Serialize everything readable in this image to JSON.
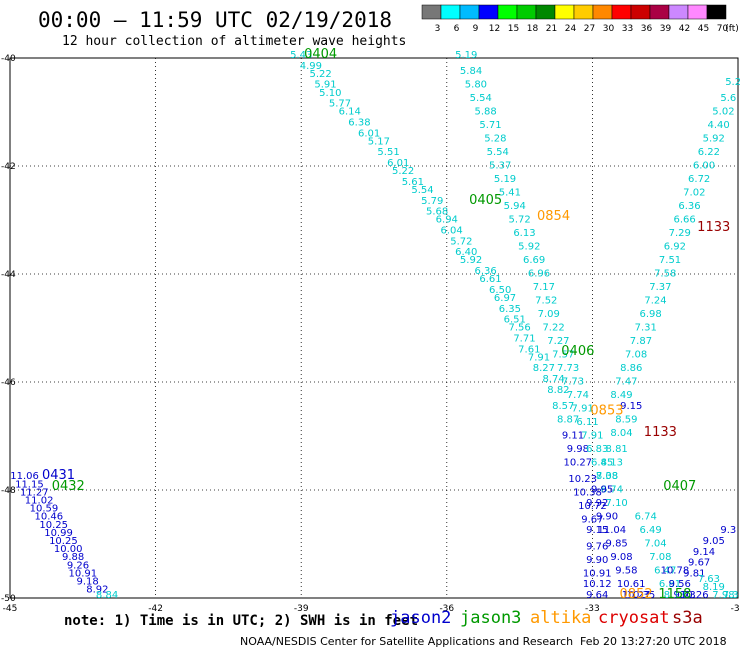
{
  "header": {
    "title": "00:00 – 11:59 UTC 02/19/2018",
    "subtitle": "12 hour collection of altimeter wave heights"
  },
  "footer": {
    "note": "note: 1) Time is in UTC; 2) SWH is in feet",
    "credit": "NOAA/NESDIS Center for Satellite Applications and Research",
    "timestamp": "Feb 20 13:27:20 UTC 2018"
  },
  "legend": {
    "satellites": [
      {
        "name": "jason2",
        "color": "#0000cc"
      },
      {
        "name": "jason3",
        "color": "#009900"
      },
      {
        "name": "altika",
        "color": "#ff9900"
      },
      {
        "name": "cryosat",
        "color": "#dd0000"
      },
      {
        "name": "s3a",
        "color": "#990000"
      }
    ],
    "colorscale": {
      "ticks": [
        "3",
        "6",
        "9",
        "12",
        "15",
        "18",
        "21",
        "24",
        "27",
        "30",
        "33",
        "36",
        "39",
        "42",
        "45",
        "70"
      ],
      "unit": "(ft)",
      "colors": [
        "#777777",
        "#00ffff",
        "#00bbff",
        "#0000ff",
        "#00ff00",
        "#00cc00",
        "#008800",
        "#ffff00",
        "#ffcc00",
        "#ff8800",
        "#ff0000",
        "#cc0000",
        "#aa0044",
        "#cc88ff",
        "#ff88ff",
        "#000000"
      ]
    }
  },
  "chart_data": {
    "type": "scatter",
    "xlabel": "",
    "ylabel": "",
    "x_ticks": [
      "-45",
      "-42",
      "-39",
      "-36",
      "-33",
      "-30"
    ],
    "y_ticks": [
      "-50",
      "-48",
      "-46",
      "-44",
      "-42",
      "-40"
    ],
    "xlim": [
      -45,
      -30
    ],
    "ylim": [
      -50,
      -40
    ],
    "grid": true,
    "time_labels": [
      {
        "text": "0404",
        "lon": -38.6,
        "lat": -40.0,
        "sat": "jason3"
      },
      {
        "text": "0405",
        "lon": -35.2,
        "lat": -42.7,
        "sat": "jason3"
      },
      {
        "text": "0854",
        "lon": -33.8,
        "lat": -43.0,
        "sat": "altika"
      },
      {
        "text": "1133",
        "lon": -30.5,
        "lat": -43.2,
        "sat": "s3a"
      },
      {
        "text": "0406",
        "lon": -33.3,
        "lat": -45.5,
        "sat": "jason3"
      },
      {
        "text": "0853",
        "lon": -32.7,
        "lat": -46.6,
        "sat": "altika"
      },
      {
        "text": "1133",
        "lon": -31.6,
        "lat": -47.0,
        "sat": "s3a"
      },
      {
        "text": "0407",
        "lon": -31.2,
        "lat": -48.0,
        "sat": "jason3"
      },
      {
        "text": "0431",
        "lon": -44.0,
        "lat": -47.8,
        "sat": "jason2"
      },
      {
        "text": "0432",
        "lon": -43.8,
        "lat": -48.0,
        "sat": "jason3"
      },
      {
        "text": "0852",
        "lon": -32.1,
        "lat": -50.0,
        "sat": "altika"
      },
      {
        "text": "1158",
        "lon": -31.3,
        "lat": -50.0,
        "sat": "jason3"
      }
    ],
    "points": [
      {
        "lon": -39.0,
        "lat": -40.0,
        "v": "5.43",
        "c": "#00cccc"
      },
      {
        "lon": -38.8,
        "lat": -40.2,
        "v": "4.99",
        "c": "#00cccc"
      },
      {
        "lon": -38.6,
        "lat": -40.35,
        "v": "5.22",
        "c": "#00cccc"
      },
      {
        "lon": -38.5,
        "lat": -40.55,
        "v": "5.91",
        "c": "#00cccc"
      },
      {
        "lon": -38.4,
        "lat": -40.7,
        "v": "5.10",
        "c": "#00cccc"
      },
      {
        "lon": -38.2,
        "lat": -40.9,
        "v": "5.77",
        "c": "#00cccc"
      },
      {
        "lon": -38.0,
        "lat": -41.05,
        "v": "6.14",
        "c": "#00cccc"
      },
      {
        "lon": -37.8,
        "lat": -41.25,
        "v": "6.38",
        "c": "#00cccc"
      },
      {
        "lon": -37.6,
        "lat": -41.45,
        "v": "6.01",
        "c": "#00cccc"
      },
      {
        "lon": -37.4,
        "lat": -41.6,
        "v": "5.17",
        "c": "#00cccc"
      },
      {
        "lon": -37.2,
        "lat": -41.8,
        "v": "5.51",
        "c": "#00cccc"
      },
      {
        "lon": -37.0,
        "lat": -42.0,
        "v": "6.01",
        "c": "#00cccc"
      },
      {
        "lon": -36.9,
        "lat": -42.15,
        "v": "5.22",
        "c": "#00cccc"
      },
      {
        "lon": -36.7,
        "lat": -42.35,
        "v": "5.61",
        "c": "#00cccc"
      },
      {
        "lon": -36.5,
        "lat": -42.5,
        "v": "5.54",
        "c": "#00cccc"
      },
      {
        "lon": -36.3,
        "lat": -42.7,
        "v": "5.79",
        "c": "#00cccc"
      },
      {
        "lon": -36.2,
        "lat": -42.9,
        "v": "5.68",
        "c": "#00cccc"
      },
      {
        "lon": -36.0,
        "lat": -43.05,
        "v": "6.94",
        "c": "#00cccc"
      },
      {
        "lon": -35.9,
        "lat": -43.25,
        "v": "6.04",
        "c": "#00cccc"
      },
      {
        "lon": -35.7,
        "lat": -43.45,
        "v": "5.72",
        "c": "#00cccc"
      },
      {
        "lon": -35.6,
        "lat": -43.65,
        "v": "6.40",
        "c": "#00cccc"
      },
      {
        "lon": -35.5,
        "lat": -43.8,
        "v": "5.92",
        "c": "#00cccc"
      },
      {
        "lon": -35.2,
        "lat": -44.0,
        "v": "6.36",
        "c": "#00cccc"
      },
      {
        "lon": -35.1,
        "lat": -44.15,
        "v": "6.61",
        "c": "#00cccc"
      },
      {
        "lon": -34.9,
        "lat": -44.35,
        "v": "6.50",
        "c": "#00cccc"
      },
      {
        "lon": -34.8,
        "lat": -44.5,
        "v": "6.97",
        "c": "#00cccc"
      },
      {
        "lon": -34.7,
        "lat": -44.7,
        "v": "6.35",
        "c": "#00cccc"
      },
      {
        "lon": -34.6,
        "lat": -44.9,
        "v": "6.51",
        "c": "#00cccc"
      },
      {
        "lon": -34.5,
        "lat": -45.05,
        "v": "7.56",
        "c": "#00cccc"
      },
      {
        "lon": -34.4,
        "lat": -45.25,
        "v": "7.71",
        "c": "#00cccc"
      },
      {
        "lon": -34.3,
        "lat": -45.45,
        "v": "7.61",
        "c": "#00cccc"
      },
      {
        "lon": -34.1,
        "lat": -45.6,
        "v": "7.91",
        "c": "#00cccc"
      },
      {
        "lon": -34.0,
        "lat": -45.8,
        "v": "8.27",
        "c": "#00cccc"
      },
      {
        "lon": -33.8,
        "lat": -46.0,
        "v": "8.74",
        "c": "#00cccc"
      },
      {
        "lon": -33.7,
        "lat": -46.2,
        "v": "8.82",
        "c": "#00cccc"
      },
      {
        "lon": -33.6,
        "lat": -46.5,
        "v": "8.57",
        "c": "#00cccc"
      },
      {
        "lon": -33.5,
        "lat": -46.75,
        "v": "8.87",
        "c": "#00cccc"
      },
      {
        "lon": -33.4,
        "lat": -47.05,
        "v": "9.11",
        "c": "#0000cc"
      },
      {
        "lon": -33.3,
        "lat": -47.3,
        "v": "9.98",
        "c": "#0000cc"
      },
      {
        "lon": -33.3,
        "lat": -47.55,
        "v": "10.27",
        "c": "#0000cc"
      },
      {
        "lon": -33.2,
        "lat": -47.85,
        "v": "10.23",
        "c": "#0000cc"
      },
      {
        "lon": -33.1,
        "lat": -48.1,
        "v": "10.38",
        "c": "#0000cc"
      },
      {
        "lon": -33.0,
        "lat": -48.35,
        "v": "10.72",
        "c": "#0000cc"
      },
      {
        "lon": -33.0,
        "lat": -48.6,
        "v": "9.67",
        "c": "#0000cc"
      },
      {
        "lon": -32.9,
        "lat": -48.8,
        "v": "9.15",
        "c": "#0000cc"
      },
      {
        "lon": -32.9,
        "lat": -49.1,
        "v": "9.76",
        "c": "#0000cc"
      },
      {
        "lon": -32.9,
        "lat": -49.35,
        "v": "9.90",
        "c": "#0000cc"
      },
      {
        "lon": -32.9,
        "lat": -49.6,
        "v": "10.91",
        "c": "#0000cc"
      },
      {
        "lon": -32.9,
        "lat": -49.8,
        "v": "10.12",
        "c": "#0000cc"
      },
      {
        "lon": -32.9,
        "lat": -50.0,
        "v": "9.64",
        "c": "#0000cc"
      },
      {
        "lon": -35.6,
        "lat": -40.0,
        "v": "5.19",
        "c": "#00cccc"
      },
      {
        "lon": -35.5,
        "lat": -40.3,
        "v": "5.84",
        "c": "#00cccc"
      },
      {
        "lon": -35.4,
        "lat": -40.55,
        "v": "5.80",
        "c": "#00cccc"
      },
      {
        "lon": -35.3,
        "lat": -40.8,
        "v": "5.54",
        "c": "#00cccc"
      },
      {
        "lon": -35.2,
        "lat": -41.05,
        "v": "5.88",
        "c": "#00cccc"
      },
      {
        "lon": -35.1,
        "lat": -41.3,
        "v": "5.71",
        "c": "#00cccc"
      },
      {
        "lon": -35.0,
        "lat": -41.55,
        "v": "5.28",
        "c": "#00cccc"
      },
      {
        "lon": -34.95,
        "lat": -41.8,
        "v": "5.54",
        "c": "#00cccc"
      },
      {
        "lon": -34.9,
        "lat": -42.05,
        "v": "5.37",
        "c": "#00cccc"
      },
      {
        "lon": -34.8,
        "lat": -42.3,
        "v": "5.19",
        "c": "#00cccc"
      },
      {
        "lon": -34.7,
        "lat": -42.55,
        "v": "5.41",
        "c": "#00cccc"
      },
      {
        "lon": -34.6,
        "lat": -42.8,
        "v": "5.94",
        "c": "#00cccc"
      },
      {
        "lon": -34.5,
        "lat": -43.05,
        "v": "5.72",
        "c": "#00cccc"
      },
      {
        "lon": -34.4,
        "lat": -43.3,
        "v": "6.13",
        "c": "#00cccc"
      },
      {
        "lon": -34.3,
        "lat": -43.55,
        "v": "5.92",
        "c": "#00cccc"
      },
      {
        "lon": -34.2,
        "lat": -43.8,
        "v": "6.69",
        "c": "#00cccc"
      },
      {
        "lon": -34.1,
        "lat": -44.05,
        "v": "6.96",
        "c": "#00cccc"
      },
      {
        "lon": -34.0,
        "lat": -44.3,
        "v": "7.17",
        "c": "#00cccc"
      },
      {
        "lon": -33.95,
        "lat": -44.55,
        "v": "7.52",
        "c": "#00cccc"
      },
      {
        "lon": -33.9,
        "lat": -44.8,
        "v": "7.09",
        "c": "#00cccc"
      },
      {
        "lon": -33.8,
        "lat": -45.05,
        "v": "7.22",
        "c": "#00cccc"
      },
      {
        "lon": -33.7,
        "lat": -45.3,
        "v": "7.27",
        "c": "#00cccc"
      },
      {
        "lon": -33.6,
        "lat": -45.55,
        "v": "7.57",
        "c": "#00cccc"
      },
      {
        "lon": -33.5,
        "lat": -45.8,
        "v": "7.73",
        "c": "#00cccc"
      },
      {
        "lon": -33.4,
        "lat": -46.05,
        "v": "7.73",
        "c": "#00cccc"
      },
      {
        "lon": -33.3,
        "lat": -46.3,
        "v": "7.74",
        "c": "#00cccc"
      },
      {
        "lon": -33.2,
        "lat": -46.55,
        "v": "7.91",
        "c": "#00cccc"
      },
      {
        "lon": -33.1,
        "lat": -46.8,
        "v": "6.11",
        "c": "#00cccc"
      },
      {
        "lon": -33.0,
        "lat": -47.05,
        "v": "7.91",
        "c": "#00cccc"
      },
      {
        "lon": -32.9,
        "lat": -47.3,
        "v": "6.83",
        "c": "#00cccc"
      },
      {
        "lon": -32.8,
        "lat": -47.55,
        "v": "6.45",
        "c": "#00cccc"
      },
      {
        "lon": -32.7,
        "lat": -47.8,
        "v": "7.38",
        "c": "#00cccc"
      },
      {
        "lon": -32.6,
        "lat": -48.05,
        "v": "6.74",
        "c": "#00cccc"
      },
      {
        "lon": -30.1,
        "lat": -40.5,
        "v": "5.2",
        "c": "#00cccc"
      },
      {
        "lon": -30.2,
        "lat": -40.8,
        "v": "5.6",
        "c": "#00cccc"
      },
      {
        "lon": -30.3,
        "lat": -41.05,
        "v": "5.02",
        "c": "#00cccc"
      },
      {
        "lon": -30.4,
        "lat": -41.3,
        "v": "4.40",
        "c": "#00cccc"
      },
      {
        "lon": -30.5,
        "lat": -41.55,
        "v": "5.92",
        "c": "#00cccc"
      },
      {
        "lon": -30.6,
        "lat": -41.8,
        "v": "6.22",
        "c": "#00cccc"
      },
      {
        "lon": -30.7,
        "lat": -42.05,
        "v": "6.00",
        "c": "#00cccc"
      },
      {
        "lon": -30.8,
        "lat": -42.3,
        "v": "6.72",
        "c": "#00cccc"
      },
      {
        "lon": -30.9,
        "lat": -42.55,
        "v": "7.02",
        "c": "#00cccc"
      },
      {
        "lon": -31.0,
        "lat": -42.8,
        "v": "6.36",
        "c": "#00cccc"
      },
      {
        "lon": -31.1,
        "lat": -43.05,
        "v": "6.66",
        "c": "#00cccc"
      },
      {
        "lon": -31.2,
        "lat": -43.3,
        "v": "7.29",
        "c": "#00cccc"
      },
      {
        "lon": -31.3,
        "lat": -43.55,
        "v": "6.92",
        "c": "#00cccc"
      },
      {
        "lon": -31.4,
        "lat": -43.8,
        "v": "7.51",
        "c": "#00cccc"
      },
      {
        "lon": -31.5,
        "lat": -44.05,
        "v": "7.58",
        "c": "#00cccc"
      },
      {
        "lon": -31.6,
        "lat": -44.3,
        "v": "7.37",
        "c": "#00cccc"
      },
      {
        "lon": -31.7,
        "lat": -44.55,
        "v": "7.24",
        "c": "#00cccc"
      },
      {
        "lon": -31.8,
        "lat": -44.8,
        "v": "6.98",
        "c": "#00cccc"
      },
      {
        "lon": -31.9,
        "lat": -45.05,
        "v": "7.31",
        "c": "#00cccc"
      },
      {
        "lon": -32.0,
        "lat": -45.3,
        "v": "7.87",
        "c": "#00cccc"
      },
      {
        "lon": -32.1,
        "lat": -45.55,
        "v": "7.08",
        "c": "#00cccc"
      },
      {
        "lon": -32.2,
        "lat": -45.8,
        "v": "8.86",
        "c": "#00cccc"
      },
      {
        "lon": -32.3,
        "lat": -46.05,
        "v": "7.47",
        "c": "#00cccc"
      },
      {
        "lon": -32.4,
        "lat": -46.3,
        "v": "8.49",
        "c": "#00cccc"
      },
      {
        "lon": -32.2,
        "lat": -46.5,
        "v": "9.15",
        "c": "#0000cc"
      },
      {
        "lon": -32.3,
        "lat": -46.75,
        "v": "8.59",
        "c": "#00cccc"
      },
      {
        "lon": -32.4,
        "lat": -47.0,
        "v": "8.04",
        "c": "#00cccc"
      },
      {
        "lon": -32.5,
        "lat": -47.3,
        "v": "8.81",
        "c": "#00cccc"
      },
      {
        "lon": -32.6,
        "lat": -47.55,
        "v": "8.13",
        "c": "#00cccc"
      },
      {
        "lon": -32.7,
        "lat": -47.8,
        "v": "8.08",
        "c": "#00cccc"
      },
      {
        "lon": -32.8,
        "lat": -48.05,
        "v": "9.95",
        "c": "#0000cc"
      },
      {
        "lon": -32.9,
        "lat": -48.3,
        "v": "9.92",
        "c": "#0000cc"
      },
      {
        "lon": -32.5,
        "lat": -48.3,
        "v": "7.10",
        "c": "#00cccc"
      },
      {
        "lon": -32.7,
        "lat": -48.55,
        "v": "9.90",
        "c": "#0000cc"
      },
      {
        "lon": -32.6,
        "lat": -48.8,
        "v": "11.04",
        "c": "#0000cc"
      },
      {
        "lon": -32.5,
        "lat": -49.05,
        "v": "9.85",
        "c": "#0000cc"
      },
      {
        "lon": -32.4,
        "lat": -49.3,
        "v": "9.08",
        "c": "#0000cc"
      },
      {
        "lon": -32.3,
        "lat": -49.55,
        "v": "9.58",
        "c": "#0000cc"
      },
      {
        "lon": -32.2,
        "lat": -49.8,
        "v": "10.61",
        "c": "#0000cc"
      },
      {
        "lon": -32.1,
        "lat": -50.0,
        "v": "10.27",
        "c": "#0000cc"
      },
      {
        "lon": -32.0,
        "lat": -50.0,
        "v": "10.35",
        "c": "#0000cc"
      },
      {
        "lon": -31.9,
        "lat": -48.55,
        "v": "6.74",
        "c": "#00cccc"
      },
      {
        "lon": -31.8,
        "lat": -48.8,
        "v": "6.49",
        "c": "#00cccc"
      },
      {
        "lon": -31.7,
        "lat": -49.05,
        "v": "7.04",
        "c": "#00cccc"
      },
      {
        "lon": -31.6,
        "lat": -49.3,
        "v": "7.08",
        "c": "#00cccc"
      },
      {
        "lon": -31.5,
        "lat": -49.55,
        "v": "6.47",
        "c": "#00cccc"
      },
      {
        "lon": -31.4,
        "lat": -49.8,
        "v": "6.81",
        "c": "#00cccc"
      },
      {
        "lon": -31.3,
        "lat": -49.55,
        "v": "10.78",
        "c": "#0000cc"
      },
      {
        "lon": -31.2,
        "lat": -49.8,
        "v": "9.56",
        "c": "#0000cc"
      },
      {
        "lon": -31.3,
        "lat": -50.0,
        "v": "8.13",
        "c": "#00cccc"
      },
      {
        "lon": -31.1,
        "lat": -50.0,
        "v": "9.73",
        "c": "#0000cc"
      },
      {
        "lon": -30.9,
        "lat": -50.0,
        "v": "10.26",
        "c": "#0000cc"
      },
      {
        "lon": -30.7,
        "lat": -49.2,
        "v": "9.14",
        "c": "#0000cc"
      },
      {
        "lon": -30.8,
        "lat": -49.4,
        "v": "9.67",
        "c": "#0000cc"
      },
      {
        "lon": -30.9,
        "lat": -49.6,
        "v": "9.81",
        "c": "#0000cc"
      },
      {
        "lon": -30.5,
        "lat": -49.0,
        "v": "9.05",
        "c": "#0000cc"
      },
      {
        "lon": -30.2,
        "lat": -48.8,
        "v": "9.3",
        "c": "#0000cc"
      },
      {
        "lon": -30.6,
        "lat": -49.7,
        "v": "7.63",
        "c": "#00cccc"
      },
      {
        "lon": -30.5,
        "lat": -49.85,
        "v": "8.19",
        "c": "#00cccc"
      },
      {
        "lon": -30.3,
        "lat": -50.0,
        "v": "7.98",
        "c": "#00cccc"
      },
      {
        "lon": -30.15,
        "lat": -50.0,
        "v": "7.3",
        "c": "#00cccc"
      },
      {
        "lon": -44.7,
        "lat": -47.8,
        "v": "11.06",
        "c": "#0000cc"
      },
      {
        "lon": -44.6,
        "lat": -47.95,
        "v": "11.15",
        "c": "#0000cc"
      },
      {
        "lon": -44.5,
        "lat": -48.1,
        "v": "11.27",
        "c": "#0000cc"
      },
      {
        "lon": -44.4,
        "lat": -48.25,
        "v": "11.02",
        "c": "#0000cc"
      },
      {
        "lon": -44.3,
        "lat": -48.4,
        "v": "10.59",
        "c": "#0000cc"
      },
      {
        "lon": -44.2,
        "lat": -48.55,
        "v": "10.46",
        "c": "#0000cc"
      },
      {
        "lon": -44.1,
        "lat": -48.7,
        "v": "10.25",
        "c": "#0000cc"
      },
      {
        "lon": -44.0,
        "lat": -48.85,
        "v": "10.99",
        "c": "#0000cc"
      },
      {
        "lon": -43.9,
        "lat": -49.0,
        "v": "10.25",
        "c": "#0000cc"
      },
      {
        "lon": -43.8,
        "lat": -49.15,
        "v": "10.00",
        "c": "#0000cc"
      },
      {
        "lon": -43.7,
        "lat": -49.3,
        "v": "9.88",
        "c": "#0000cc"
      },
      {
        "lon": -43.6,
        "lat": -49.45,
        "v": "9.26",
        "c": "#0000cc"
      },
      {
        "lon": -43.5,
        "lat": -49.6,
        "v": "10.91",
        "c": "#0000cc"
      },
      {
        "lon": -43.4,
        "lat": -49.75,
        "v": "9.18",
        "c": "#0000cc"
      },
      {
        "lon": -43.2,
        "lat": -49.9,
        "v": "8.92",
        "c": "#0000cc"
      },
      {
        "lon": -43.0,
        "lat": -50.0,
        "v": "8.84",
        "c": "#00cccc"
      }
    ]
  }
}
